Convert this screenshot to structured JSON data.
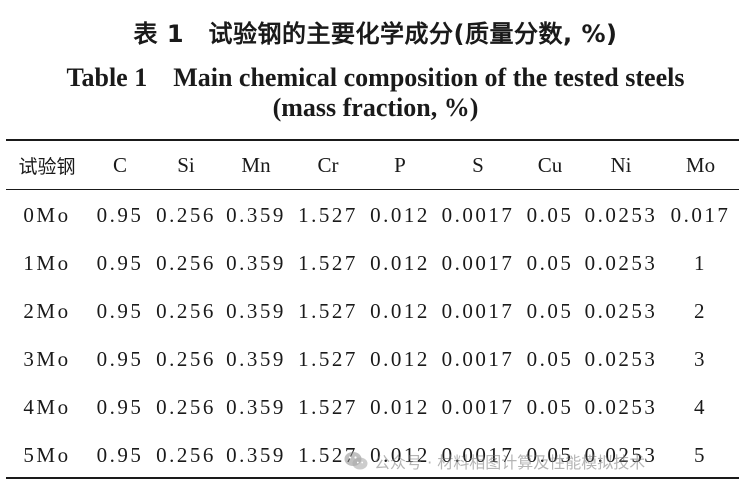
{
  "caption": {
    "cn": "表 1　试验钢的主要化学成分(质量分数, %)",
    "en_line1": "Table 1　Main chemical composition of the tested steels",
    "en_line2": "(mass fraction, %)"
  },
  "table": {
    "headers": [
      "试验钢",
      "C",
      "Si",
      "Mn",
      "Cr",
      "P",
      "S",
      "Cu",
      "Ni",
      "Mo"
    ],
    "rows": [
      [
        "0Mo",
        "0.95",
        "0.256",
        "0.359",
        "1.527",
        "0.012",
        "0.0017",
        "0.05",
        "0.0253",
        "0.017"
      ],
      [
        "1Mo",
        "0.95",
        "0.256",
        "0.359",
        "1.527",
        "0.012",
        "0.0017",
        "0.05",
        "0.0253",
        "1"
      ],
      [
        "2Mo",
        "0.95",
        "0.256",
        "0.359",
        "1.527",
        "0.012",
        "0.0017",
        "0.05",
        "0.0253",
        "2"
      ],
      [
        "3Mo",
        "0.95",
        "0.256",
        "0.359",
        "1.527",
        "0.012",
        "0.0017",
        "0.05",
        "0.0253",
        "3"
      ],
      [
        "4Mo",
        "0.95",
        "0.256",
        "0.359",
        "1.527",
        "0.012",
        "0.0017",
        "0.05",
        "0.0253",
        "4"
      ],
      [
        "5Mo",
        "0.95",
        "0.256",
        "0.359",
        "1.527",
        "0.012",
        "0.0017",
        "0.05",
        "0.0253",
        "5"
      ]
    ]
  },
  "watermark": {
    "icon": "wechat-icon",
    "text": "公众号 · 材料相图计算及性能模拟技术"
  }
}
